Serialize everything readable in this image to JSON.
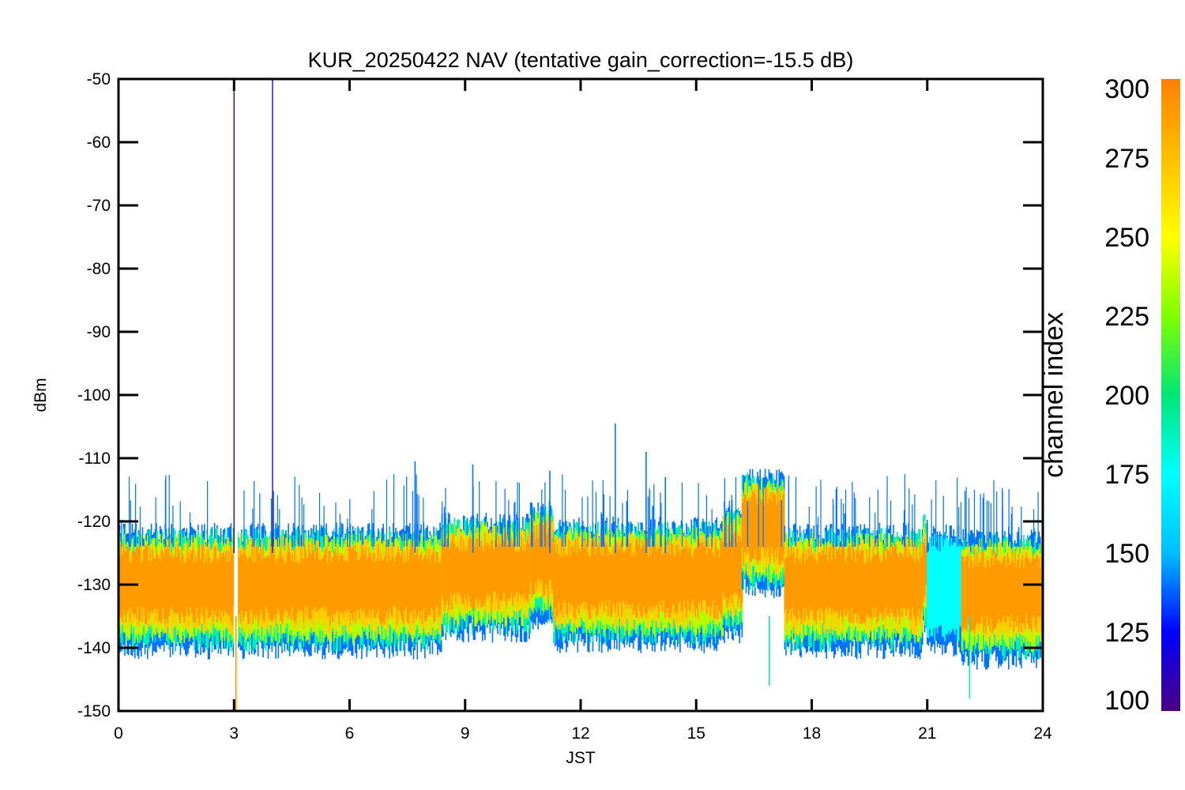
{
  "chart_data": {
    "type": "scatter",
    "title": "KUR_20250422 NAV (tentative gain_correction=-15.5 dB)",
    "xlabel": "JST",
    "ylabel": "dBm",
    "xlim": [
      0,
      24
    ],
    "ylim": [
      -150,
      -50
    ],
    "x_ticks": [
      "0",
      "3",
      "6",
      "9",
      "12",
      "15",
      "18",
      "21",
      "24"
    ],
    "y_ticks": [
      "-50",
      "-60",
      "-70",
      "-80",
      "-90",
      "-100",
      "-110",
      "-120",
      "-130",
      "-140",
      "-150"
    ],
    "colorbar": {
      "title": "channel index",
      "range": [
        100,
        300
      ],
      "ticks": [
        "300",
        "275",
        "250",
        "225",
        "200",
        "175",
        "150",
        "125",
        "100"
      ],
      "colormap": "rainbow",
      "colors": [
        "#4b0082",
        "#0000ff",
        "#00bfff",
        "#00ffff",
        "#00e676",
        "#7fff00",
        "#ffff00",
        "#ffc000",
        "#ff8000"
      ]
    },
    "segments": [
      {
        "x_start": 0.0,
        "x_end": 3.0,
        "center": -129,
        "spread": 8.5,
        "top_edge": -120
      },
      {
        "x_start": 3.1,
        "x_end": 8.4,
        "center": -129,
        "spread": 8.5,
        "top_edge": -121
      },
      {
        "x_start": 8.4,
        "x_end": 10.7,
        "center": -127,
        "spread": 8.0,
        "top_edge": -120
      },
      {
        "x_start": 10.7,
        "x_end": 11.3,
        "center": -125,
        "spread": 8.0,
        "top_edge": -119
      },
      {
        "x_start": 11.3,
        "x_end": 15.7,
        "center": -128,
        "spread": 8.5,
        "top_edge": -121
      },
      {
        "x_start": 15.7,
        "x_end": 16.2,
        "center": -126,
        "spread": 9.0,
        "top_edge": -117
      },
      {
        "x_start": 16.2,
        "x_end": 17.3,
        "center": -120,
        "spread": 8.0,
        "top_edge": -111
      },
      {
        "x_start": 17.3,
        "x_end": 20.9,
        "center": -129,
        "spread": 8.5,
        "top_edge": -121
      },
      {
        "x_start": 20.9,
        "x_end": 21.0,
        "center": -126,
        "spread": 8.0,
        "top_edge": -119
      },
      {
        "x_start": 21.0,
        "x_end": 21.9,
        "center": -129,
        "spread": 8.5,
        "top_edge": -121,
        "dominant_channel": 175
      },
      {
        "x_start": 21.9,
        "x_end": 24.0,
        "center": -130,
        "spread": 9.0,
        "top_edge": -121
      }
    ],
    "spikes": [
      {
        "x": 3.0,
        "y": -50,
        "channel": 110
      },
      {
        "x": 4.0,
        "y": -50,
        "channel": 110
      },
      {
        "x": 3.05,
        "y": -150,
        "channel": 290
      },
      {
        "x": 7.7,
        "y": -110.5,
        "channel": 140
      },
      {
        "x": 9.2,
        "y": -111,
        "channel": 140
      },
      {
        "x": 11.2,
        "y": -112,
        "channel": 140
      },
      {
        "x": 12.9,
        "y": -104.5,
        "channel": 140
      },
      {
        "x": 13.7,
        "y": -109,
        "channel": 140
      },
      {
        "x": 14.2,
        "y": -113,
        "channel": 140
      },
      {
        "x": 16.9,
        "y": -146,
        "channel": 190
      },
      {
        "x": 22.1,
        "y": -148,
        "channel": 190
      }
    ]
  }
}
